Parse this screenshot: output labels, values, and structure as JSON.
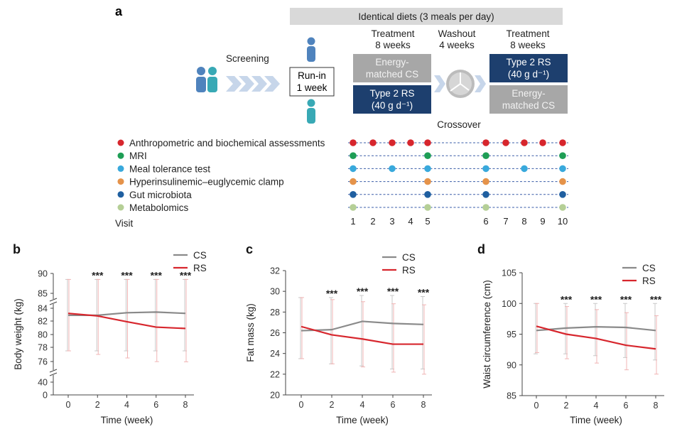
{
  "panel_a": {
    "letter": "a",
    "banner": "Identical diets (3 meals per day)",
    "screening": "Screening",
    "runin_line1": "Run-in",
    "runin_line2": "1 week",
    "treatment1_line1": "Treatment",
    "treatment1_line2": "8 weeks",
    "washout_line1": "Washout",
    "washout_line2": "4 weeks",
    "treatment2_line1": "Treatment",
    "treatment2_line2": "8 weeks",
    "box_cs1_line1": "Energy-",
    "box_cs1_line2": "matched CS",
    "box_rs1_line1": "Type 2 RS",
    "box_rs1_line2": "(40 g d⁻¹)",
    "box_rs2_line1": "Type 2 RS",
    "box_rs2_line2": "(40 g d⁻¹)",
    "box_cs2_line1": "Energy-",
    "box_cs2_line2": "matched CS",
    "crossover": "Crossover",
    "visit_label": "Visit",
    "visits": [
      "1",
      "2",
      "3",
      "4",
      "5",
      "6",
      "7",
      "8",
      "9",
      "10"
    ],
    "assessments": [
      {
        "label": "Anthropometric and biochemical assessments",
        "color": "#d7262d",
        "visits": [
          1,
          2,
          3,
          4,
          5,
          6,
          7,
          8,
          9,
          10
        ]
      },
      {
        "label": "MRI",
        "color": "#1e9e55",
        "visits": [
          1,
          5,
          6,
          10
        ]
      },
      {
        "label": "Meal tolerance test",
        "color": "#39a9dc",
        "visits": [
          1,
          3,
          5,
          6,
          8,
          10
        ]
      },
      {
        "label": "Hyperinsulinemic–euglycemic clamp",
        "color": "#e5934a",
        "visits": [
          1,
          5,
          6,
          10
        ]
      },
      {
        "label": "Gut microbiota",
        "color": "#1f5fa0",
        "visits": [
          1,
          5,
          6,
          10
        ]
      },
      {
        "label": "Metabolomics",
        "color": "#b5cf96",
        "visits": [
          1,
          5,
          6,
          10
        ]
      }
    ],
    "colors": {
      "rs_box": "#1d3f6e",
      "cs_box": "#a7a7a7",
      "banner": "#d9d9d9",
      "person": "#4f83bd",
      "person_teal": "#38a9b5"
    }
  },
  "chart_data": [
    {
      "panel": "b",
      "type": "line",
      "ylabel": "Body weight (kg)",
      "xlabel": "Time (week)",
      "x": [
        0,
        2,
        4,
        6,
        8
      ],
      "xticks": [
        "0",
        "2",
        "4",
        "6",
        "8"
      ],
      "yticks": [
        "0",
        "40",
        "76",
        "78",
        "80",
        "82",
        "84",
        "85",
        "90"
      ],
      "axis_break": true,
      "significance": [
        "",
        "***",
        "***",
        "***",
        "***"
      ],
      "series": [
        {
          "name": "CS",
          "color": "#8a8a8a",
          "values": [
            82.9,
            82.9,
            83.3,
            83.4,
            83.2
          ],
          "err_upper": [
            88.5,
            88.5,
            88.5,
            88.5,
            88.5
          ],
          "err_lower": [
            77.5,
            77.5,
            77.5,
            77.5,
            77.5
          ]
        },
        {
          "name": "RS",
          "color": "#d7262d",
          "values": [
            83.2,
            82.8,
            81.9,
            81.1,
            80.9
          ],
          "err_upper": [
            88.5,
            88.5,
            88.5,
            88.5,
            88.5
          ],
          "err_lower": [
            77.5,
            77.0,
            76.5,
            75.8,
            75.5
          ]
        }
      ]
    },
    {
      "panel": "c",
      "type": "line",
      "ylabel": "Fat mass (kg)",
      "xlabel": "Time (week)",
      "x": [
        0,
        2,
        4,
        6,
        8
      ],
      "xticks": [
        "0",
        "2",
        "4",
        "6",
        "8"
      ],
      "ylim": [
        20,
        32
      ],
      "yticks": [
        "20",
        "22",
        "24",
        "26",
        "28",
        "30",
        "32"
      ],
      "significance": [
        "",
        "***",
        "***",
        "***",
        "***"
      ],
      "series": [
        {
          "name": "CS",
          "color": "#8a8a8a",
          "values": [
            26.2,
            26.3,
            27.1,
            26.9,
            26.8
          ],
          "err_upper": [
            29.4,
            29.4,
            29.6,
            29.6,
            29.5
          ],
          "err_lower": [
            23.5,
            23.0,
            22.8,
            22.5,
            22.5
          ]
        },
        {
          "name": "RS",
          "color": "#d7262d",
          "values": [
            26.6,
            25.8,
            25.4,
            24.9,
            24.9
          ],
          "err_upper": [
            29.4,
            29.2,
            29.0,
            28.8,
            28.7
          ],
          "err_lower": [
            23.5,
            23.0,
            22.7,
            22.2,
            22.0
          ]
        }
      ]
    },
    {
      "panel": "d",
      "type": "line",
      "ylabel": "Waist circumference (cm)",
      "xlabel": "Time (week)",
      "x": [
        0,
        2,
        4,
        6,
        8
      ],
      "xticks": [
        "0",
        "2",
        "4",
        "6",
        "8"
      ],
      "ylim": [
        85,
        105
      ],
      "yticks": [
        "85",
        "90",
        "95",
        "100",
        "105"
      ],
      "significance": [
        "",
        "***",
        "***",
        "***",
        "***"
      ],
      "series": [
        {
          "name": "CS",
          "color": "#8a8a8a",
          "values": [
            95.6,
            96.0,
            96.2,
            96.1,
            95.6
          ],
          "err_upper": [
            100.0,
            100.0,
            100.0,
            100.0,
            100.0
          ],
          "err_lower": [
            91.8,
            91.8,
            91.5,
            91.2,
            90.8
          ]
        },
        {
          "name": "RS",
          "color": "#d7262d",
          "values": [
            96.3,
            95.0,
            94.3,
            93.2,
            92.6
          ],
          "err_upper": [
            100.0,
            99.5,
            99.0,
            98.5,
            98.0
          ],
          "err_lower": [
            92.0,
            91.0,
            90.3,
            89.2,
            88.5
          ]
        }
      ]
    }
  ]
}
